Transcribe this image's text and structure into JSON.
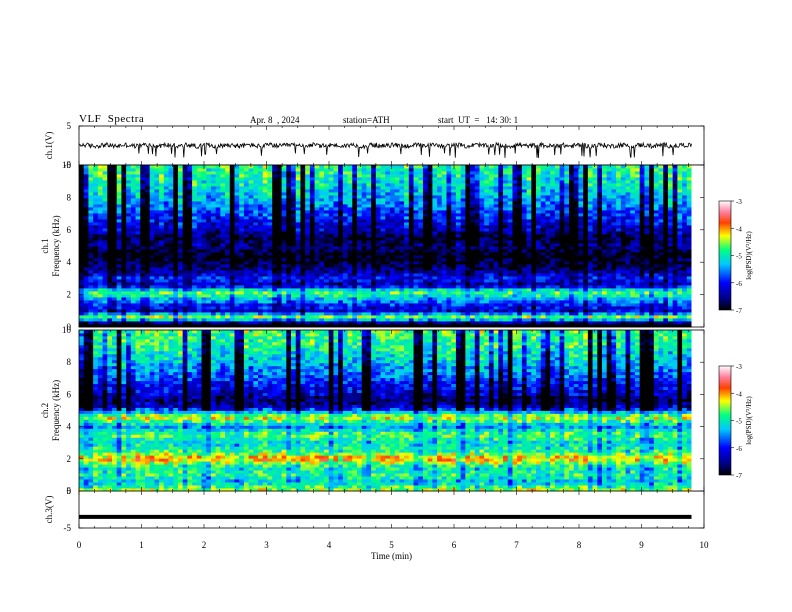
{
  "header": {
    "title": "VLF  Spectra",
    "date": "Apr. 8  , 2024",
    "station": "station=ATH",
    "start": "start  UT  =   14: 30: 1"
  },
  "chart_data": [
    {
      "type": "line",
      "panel": "ch1-waveform",
      "ylabel": "ch.1(V)",
      "ylim": [
        -5,
        5
      ],
      "y_ticks": [
        "5",
        "-5"
      ],
      "xlim": [
        0,
        10
      ],
      "x_end": 9.8,
      "description_values": {
        "baseline": 0,
        "typical_amplitude": 0.6,
        "spikes_to": -2.0
      },
      "color": "#000000"
    },
    {
      "type": "heatmap",
      "panel": "ch1-spectrogram",
      "ylabel": "ch.1\nFrequency  (kHz)",
      "ylim": [
        0,
        10
      ],
      "y_ticks": [
        "0",
        "2",
        "4",
        "6",
        "8",
        "10"
      ],
      "xlim": [
        0,
        10
      ],
      "x_end": 9.8,
      "bands": [
        {
          "f": 0.2,
          "level": -7.0
        },
        {
          "f": 0.6,
          "level": -4.3
        },
        {
          "f": 1.0,
          "level": -6.2
        },
        {
          "f": 1.4,
          "level": -5.8
        },
        {
          "f": 1.9,
          "level": -5.0
        },
        {
          "f": 2.2,
          "level": -4.6
        },
        {
          "f": 2.6,
          "level": -6.4
        },
        {
          "f": 3.0,
          "level": -5.9
        },
        {
          "f": 3.5,
          "level": -6.5
        },
        {
          "f": 4.0,
          "level": -6.8
        },
        {
          "f": 4.5,
          "level": -7.0
        },
        {
          "f": 5.0,
          "level": -6.5
        },
        {
          "f": 5.5,
          "level": -6.8
        },
        {
          "f": 6.0,
          "level": -6.3
        },
        {
          "f": 7.0,
          "level": -5.8
        },
        {
          "f": 8.0,
          "level": -5.3
        },
        {
          "f": 9.0,
          "level": -5.0
        },
        {
          "f": 10.0,
          "level": -4.8
        }
      ],
      "colorbar": {
        "label": "log(PSD)(V²/Hz)",
        "range": [
          -7,
          -3
        ],
        "ticks": [
          "-3",
          "-4",
          "-5",
          "-6",
          "-7"
        ]
      }
    },
    {
      "type": "heatmap",
      "panel": "ch2-spectrogram",
      "ylabel": "ch.2\nFrequency  (kHz)",
      "ylim": [
        0,
        10
      ],
      "y_ticks": [
        "0",
        "2",
        "4",
        "6",
        "8",
        "10"
      ],
      "xlim": [
        0,
        10
      ],
      "x_end": 9.8,
      "bands": [
        {
          "f": 0.2,
          "level": -4.6
        },
        {
          "f": 0.6,
          "level": -5.2
        },
        {
          "f": 1.0,
          "level": -4.8
        },
        {
          "f": 1.5,
          "level": -5.0
        },
        {
          "f": 2.0,
          "level": -3.9
        },
        {
          "f": 2.5,
          "level": -4.8
        },
        {
          "f": 3.0,
          "level": -5.1
        },
        {
          "f": 3.5,
          "level": -4.6
        },
        {
          "f": 4.0,
          "level": -5.4
        },
        {
          "f": 4.6,
          "level": -4.2
        },
        {
          "f": 5.2,
          "level": -6.2
        },
        {
          "f": 5.6,
          "level": -6.7
        },
        {
          "f": 6.0,
          "level": -6.3
        },
        {
          "f": 7.0,
          "level": -5.8
        },
        {
          "f": 8.0,
          "level": -5.3
        },
        {
          "f": 9.0,
          "level": -4.9
        },
        {
          "f": 10.0,
          "level": -4.7
        }
      ],
      "colorbar": {
        "label": "log(PSD)(V²/Hz)",
        "range": [
          -7,
          -3
        ],
        "ticks": [
          "-3",
          "-4",
          "-5",
          "-6",
          "-7"
        ]
      }
    },
    {
      "type": "line",
      "panel": "ch3-waveform",
      "ylabel": "ch.3(V)",
      "ylim": [
        -5,
        5
      ],
      "y_ticks": [
        "5",
        "-5"
      ],
      "xlim": [
        0,
        10
      ],
      "x_end": 9.8,
      "description_values": {
        "level": -2.0
      },
      "color": "#000000"
    }
  ],
  "x_axis": {
    "label": "Time  (min)",
    "ticks": [
      "0",
      "1",
      "2",
      "3",
      "4",
      "5",
      "6",
      "7",
      "8",
      "9",
      "10"
    ]
  }
}
